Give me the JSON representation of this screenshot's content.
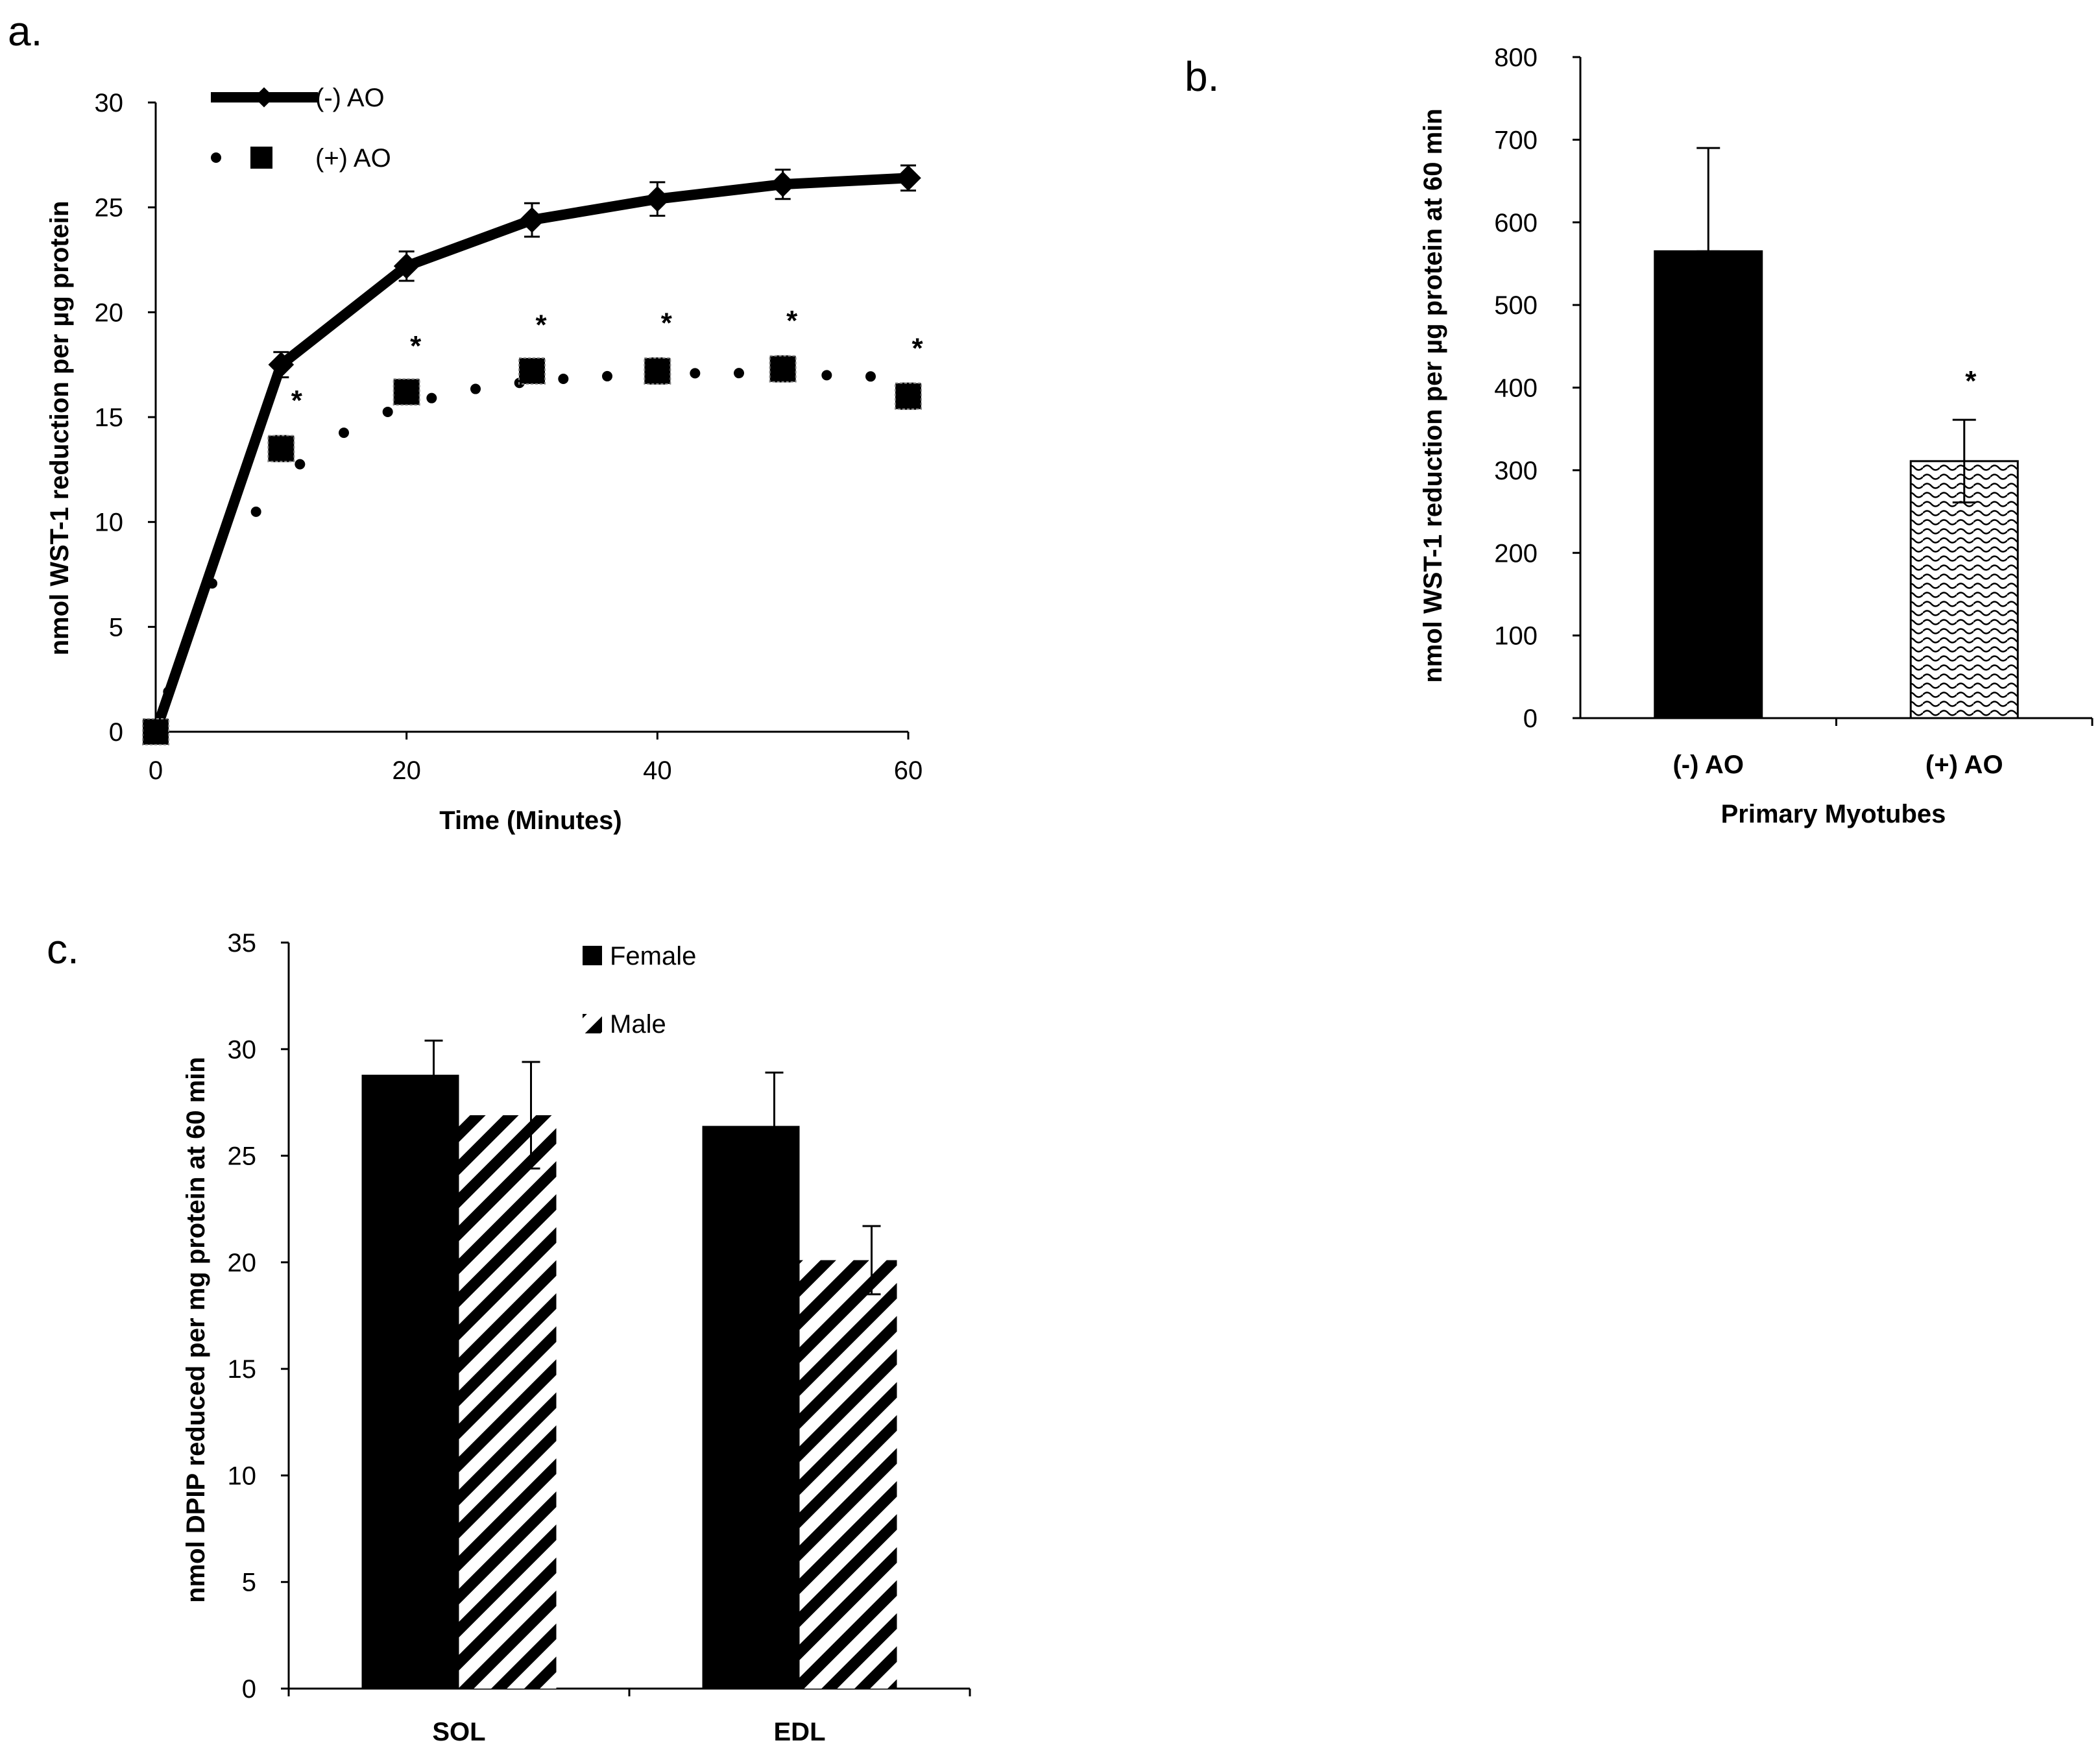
{
  "chart_data": [
    {
      "panel": "a.",
      "type": "line",
      "xlabel": "Time (Minutes)",
      "ylabel": "nmol WST-1 reduction per µg protein",
      "xlim": [
        0,
        60
      ],
      "ylim": [
        0,
        30
      ],
      "xticks": [
        0,
        20,
        40,
        60
      ],
      "yticks": [
        0,
        5,
        10,
        15,
        20,
        25,
        30
      ],
      "series": [
        {
          "name": "(-) AO",
          "style": "solid",
          "marker": "diamond",
          "x": [
            0,
            10,
            20,
            30,
            40,
            50,
            60
          ],
          "y": [
            0,
            17.5,
            22.2,
            24.4,
            25.4,
            26.1,
            26.4
          ],
          "err": [
            0.3,
            0.6,
            0.7,
            0.8,
            0.8,
            0.7,
            0.6
          ]
        },
        {
          "name": "(+) AO",
          "style": "dotted",
          "marker": "square",
          "x": [
            0,
            10,
            20,
            30,
            40,
            50,
            60
          ],
          "y": [
            0,
            13.5,
            16.2,
            17.2,
            17.2,
            17.3,
            16.0
          ],
          "err": [
            0.3,
            0.6,
            0.5,
            0.5,
            0.6,
            0.6,
            0.6
          ],
          "significance": [
            "",
            "*",
            "*",
            "*",
            "*",
            "*",
            "*"
          ]
        }
      ]
    },
    {
      "panel": "b.",
      "type": "bar",
      "xlabel": "Primary Myotubes",
      "ylabel": "nmol WST-1 reduction per µg protein at 60 min",
      "ylim": [
        0,
        800
      ],
      "yticks": [
        0,
        100,
        200,
        300,
        400,
        500,
        600,
        700,
        800
      ],
      "categories": [
        "(-) AO",
        "(+) AO"
      ],
      "values": [
        565,
        311
      ],
      "err": [
        125,
        50
      ],
      "significance": [
        "",
        "*"
      ]
    },
    {
      "panel": "c.",
      "type": "bar",
      "xlabel": "",
      "ylabel": "nmol DPIP reduced per mg protein at 60 min",
      "ylim": [
        0,
        35
      ],
      "yticks": [
        0,
        5,
        10,
        15,
        20,
        25,
        30,
        35
      ],
      "categories": [
        "SOL",
        "EDL"
      ],
      "series": [
        {
          "name": "Female",
          "fill": "solid",
          "values": [
            28.8,
            26.4
          ],
          "err": [
            1.6,
            2.5
          ]
        },
        {
          "name": "Male",
          "fill": "hatched",
          "values": [
            26.9,
            20.1
          ],
          "err": [
            2.5,
            1.6
          ]
        }
      ]
    }
  ]
}
